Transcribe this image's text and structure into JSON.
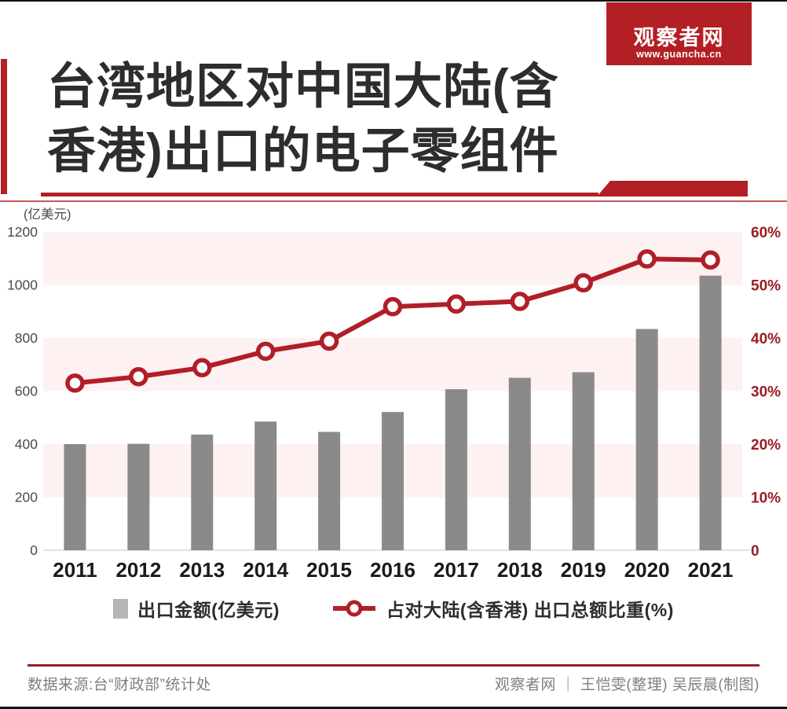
{
  "header": {
    "title_line1": "台湾地区对中国大陆(含",
    "title_line2": "香港)出口的电子零组件",
    "logo_name": "观察者网",
    "logo_url": "www.guancha.cn"
  },
  "chart_data": {
    "type": "bar",
    "title": "台湾地区对中国大陆(含香港)出口的电子零组件",
    "categories": [
      "2011",
      "2012",
      "2013",
      "2014",
      "2015",
      "2016",
      "2017",
      "2018",
      "2019",
      "2020",
      "2021"
    ],
    "series": [
      {
        "name": "出口金额(亿美元)",
        "type": "bar",
        "axis": "left",
        "values": [
          400,
          401,
          436,
          485,
          446,
          521,
          607,
          650,
          671,
          834,
          1035
        ]
      },
      {
        "name": "占对大陆(含香港) 出口总额比重(%)",
        "type": "line",
        "axis": "right",
        "values": [
          31.5,
          32.7,
          34.4,
          37.5,
          39.4,
          45.9,
          46.4,
          46.9,
          50.4,
          54.9,
          54.7
        ]
      }
    ],
    "left_axis": {
      "unit": "(亿美元)",
      "max": 1200,
      "ticks": [
        0,
        200,
        400,
        600,
        800,
        1000,
        1200
      ]
    },
    "right_axis": {
      "max": 60,
      "ticks": [
        {
          "value": 0,
          "label": "0"
        },
        {
          "value": 10,
          "label": "10%"
        },
        {
          "value": 20,
          "label": "20%"
        },
        {
          "value": 30,
          "label": "30%"
        },
        {
          "value": 40,
          "label": "40%"
        },
        {
          "value": 50,
          "label": "50%"
        },
        {
          "value": 60,
          "label": "60%"
        }
      ]
    },
    "bands": [
      [
        200,
        400
      ],
      [
        600,
        800
      ],
      [
        1000,
        1200
      ]
    ],
    "grid": "banded-rows",
    "legend_position": "bottom"
  },
  "footer": {
    "source": "数据来源:台“财政部”统计处",
    "credit": "观察者网 ｜ 王恺雯(整理)  吴辰晨(制图)"
  },
  "colors": {
    "accent_red": "#b21f24",
    "line_red": "#b01f27",
    "axis_label_red": "#9a1d24",
    "bar_gray": "#8a8a8a",
    "legend_swatch_gray": "#b5b5b5",
    "band_pink": "#fdf1f1",
    "title_dark": "#2d2d2d",
    "tick_gray": "#4a4a4a",
    "year_black": "#1a1a1a",
    "footer_gray": "#7f7f7f",
    "divider_red": "#9a2128",
    "baseline_gray": "#d9d9d9"
  }
}
